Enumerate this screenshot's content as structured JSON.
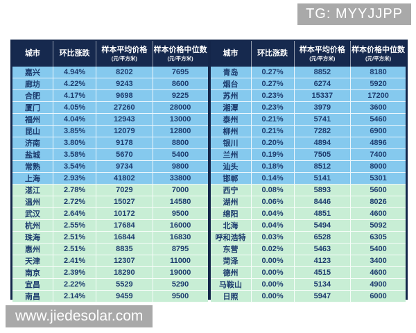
{
  "badges": {
    "top_right": "TG: MYYJJPP",
    "bottom_left": "www.jiedesolar.com"
  },
  "headers": {
    "city": "城市",
    "mom_change": "环比涨跌",
    "avg_price": "样本平均价格",
    "median_price": "样本价格中位数",
    "unit": "(元/平方米)"
  },
  "group_split": 10,
  "colors": {
    "header_bg": "#16294e",
    "row_blue": "#85c9ee",
    "row_green": "#c8eed5",
    "text": "#1d3c6e",
    "border": "#14264a",
    "badge_bg": "#a9a9a9"
  },
  "chart_data": [
    {
      "type": "table",
      "title": "城市房价环比涨跌 - 左表",
      "columns": [
        "城市",
        "环比涨跌",
        "样本平均价格 (元/平方米)",
        "样本价格中位数 (元/平方米)"
      ],
      "rows": [
        [
          "嘉兴",
          "4.94%",
          8202,
          7695
        ],
        [
          "廊坊",
          "4.22%",
          9243,
          8600
        ],
        [
          "合肥",
          "4.17%",
          9698,
          9225
        ],
        [
          "厦门",
          "4.05%",
          27260,
          28000
        ],
        [
          "福州",
          "4.04%",
          12943,
          13000
        ],
        [
          "昆山",
          "3.85%",
          12079,
          12800
        ],
        [
          "济南",
          "3.80%",
          9178,
          8800
        ],
        [
          "盐城",
          "3.58%",
          5670,
          5400
        ],
        [
          "常熟",
          "3.54%",
          9734,
          9800
        ],
        [
          "上海",
          "2.93%",
          41802,
          33800
        ],
        [
          "湛江",
          "2.78%",
          7029,
          7000
        ],
        [
          "温州",
          "2.72%",
          15027,
          14580
        ],
        [
          "武汉",
          "2.64%",
          10172,
          9500
        ],
        [
          "杭州",
          "2.55%",
          17684,
          16000
        ],
        [
          "珠海",
          "2.51%",
          16844,
          16830
        ],
        [
          "惠州",
          "2.51%",
          8835,
          8795
        ],
        [
          "天津",
          "2.41%",
          12307,
          11000
        ],
        [
          "南京",
          "2.39%",
          18290,
          19000
        ],
        [
          "宜昌",
          "2.22%",
          5529,
          5290
        ],
        [
          "南昌",
          "2.14%",
          9459,
          9500
        ]
      ]
    },
    {
      "type": "table",
      "title": "城市房价环比涨跌 - 右表",
      "columns": [
        "城市",
        "环比涨跌",
        "样本平均价格 (元/平方米)",
        "样本价格中位数 (元/平方米)"
      ],
      "rows": [
        [
          "青岛",
          "0.27%",
          8852,
          8180
        ],
        [
          "烟台",
          "0.27%",
          6274,
          5920
        ],
        [
          "苏州",
          "0.23%",
          15337,
          17200
        ],
        [
          "湘潭",
          "0.23%",
          3979,
          3600
        ],
        [
          "泰州",
          "0.21%",
          5741,
          5460
        ],
        [
          "柳州",
          "0.21%",
          7282,
          6900
        ],
        [
          "银川",
          "0.20%",
          4894,
          4896
        ],
        [
          "兰州",
          "0.19%",
          7505,
          7400
        ],
        [
          "汕头",
          "0.18%",
          8512,
          8000
        ],
        [
          "邯郸",
          "0.14%",
          5141,
          5301
        ],
        [
          "西宁",
          "0.08%",
          5893,
          5600
        ],
        [
          "湖州",
          "0.06%",
          8446,
          8026
        ],
        [
          "绵阳",
          "0.04%",
          4851,
          4600
        ],
        [
          "北海",
          "0.04%",
          5494,
          5092
        ],
        [
          "呼和浩特",
          "0.03%",
          6528,
          6305
        ],
        [
          "东营",
          "0.02%",
          5463,
          5400
        ],
        [
          "菏泽",
          "0.00%",
          4123,
          3400
        ],
        [
          "德州",
          "0.00%",
          4515,
          4600
        ],
        [
          "马鞍山",
          "0.00%",
          5134,
          4900
        ],
        [
          "日照",
          "0.00%",
          5947,
          6000
        ]
      ]
    }
  ]
}
